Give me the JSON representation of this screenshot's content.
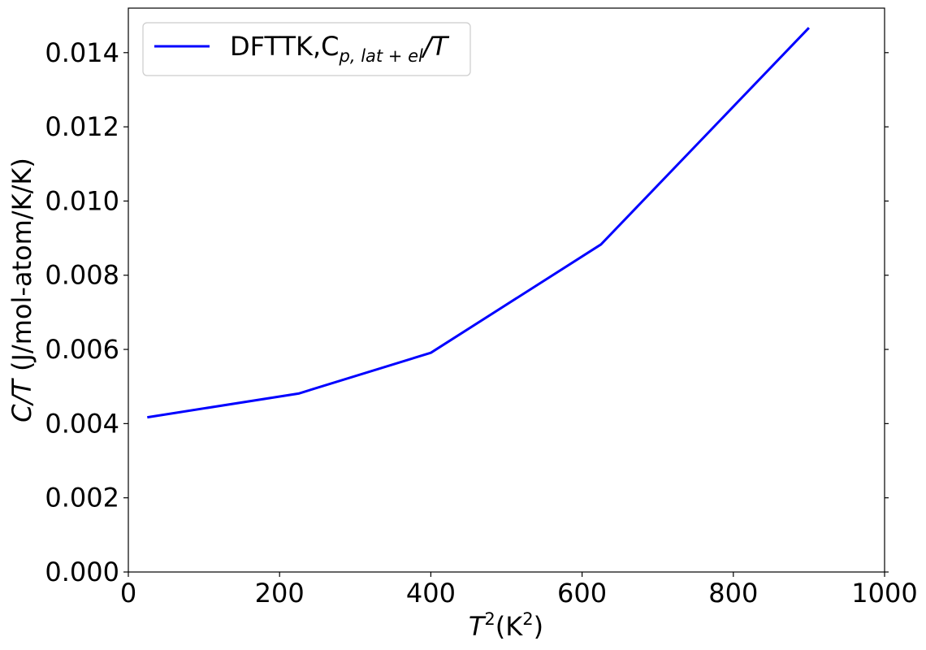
{
  "chart_data": {
    "type": "line",
    "xlim": [
      0,
      1000
    ],
    "ylim": [
      0,
      0.0152
    ],
    "xticks": [
      0,
      200,
      400,
      600,
      800,
      1000
    ],
    "xtick_labels": [
      "0",
      "200",
      "400",
      "600",
      "800",
      "1000"
    ],
    "yticks": [
      0,
      0.002,
      0.004,
      0.006,
      0.008,
      0.01,
      0.012,
      0.014
    ],
    "ytick_labels": [
      "0.000",
      "0.002",
      "0.004",
      "0.006",
      "0.008",
      "0.010",
      "0.012",
      "0.014"
    ],
    "xlabel": {
      "T": "T",
      "sup": "2",
      "rest": "(K",
      "sup2": "2",
      "close": ")"
    },
    "ylabel": {
      "italic": "C/T",
      "rest": " (J/mol-atom/K/K)"
    },
    "grid": false,
    "legend_position": "top-left",
    "series": [
      {
        "name": "DFTTK,C",
        "name_subscript": "p, lat + el",
        "name_suffix": "/T",
        "color": "#0000ff",
        "x": [
          25,
          225,
          400,
          625,
          900
        ],
        "y": [
          0.00417,
          0.00481,
          0.00591,
          0.00883,
          0.01467
        ]
      }
    ]
  }
}
